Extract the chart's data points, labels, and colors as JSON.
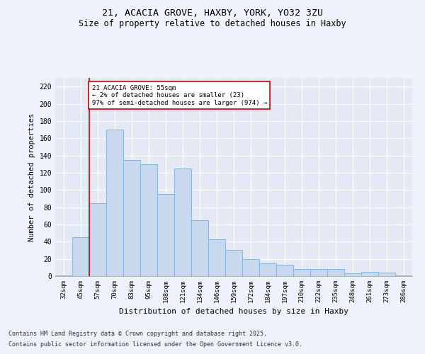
{
  "title_line1": "21, ACACIA GROVE, HAXBY, YORK, YO32 3ZU",
  "title_line2": "Size of property relative to detached houses in Haxby",
  "xlabel": "Distribution of detached houses by size in Haxby",
  "ylabel": "Number of detached properties",
  "categories": [
    "32sqm",
    "45sqm",
    "57sqm",
    "70sqm",
    "83sqm",
    "95sqm",
    "108sqm",
    "121sqm",
    "134sqm",
    "146sqm",
    "159sqm",
    "172sqm",
    "184sqm",
    "197sqm",
    "210sqm",
    "222sqm",
    "235sqm",
    "248sqm",
    "261sqm",
    "273sqm",
    "286sqm"
  ],
  "values": [
    1,
    45,
    85,
    170,
    135,
    130,
    95,
    125,
    65,
    43,
    30,
    20,
    15,
    13,
    8,
    8,
    8,
    3,
    5,
    4,
    1
  ],
  "bar_color": "#c8d9ee",
  "bar_edge_color": "#7aadd4",
  "vline_color": "#cc0000",
  "annotation_line1": "21 ACACIA GROVE: 55sqm",
  "annotation_line2": "← 2% of detached houses are smaller (23)",
  "annotation_line3": "97% of semi-detached houses are larger (974) →",
  "annotation_box_color": "#ffffff",
  "annotation_box_edge_color": "#cc0000",
  "background_color": "#eef2fa",
  "plot_bg_color": "#e4eaf5",
  "footer_line1": "Contains HM Land Registry data © Crown copyright and database right 2025.",
  "footer_line2": "Contains public sector information licensed under the Open Government Licence v3.0.",
  "ylim": [
    0,
    230
  ],
  "yticks": [
    0,
    20,
    40,
    60,
    80,
    100,
    120,
    140,
    160,
    180,
    200,
    220
  ]
}
